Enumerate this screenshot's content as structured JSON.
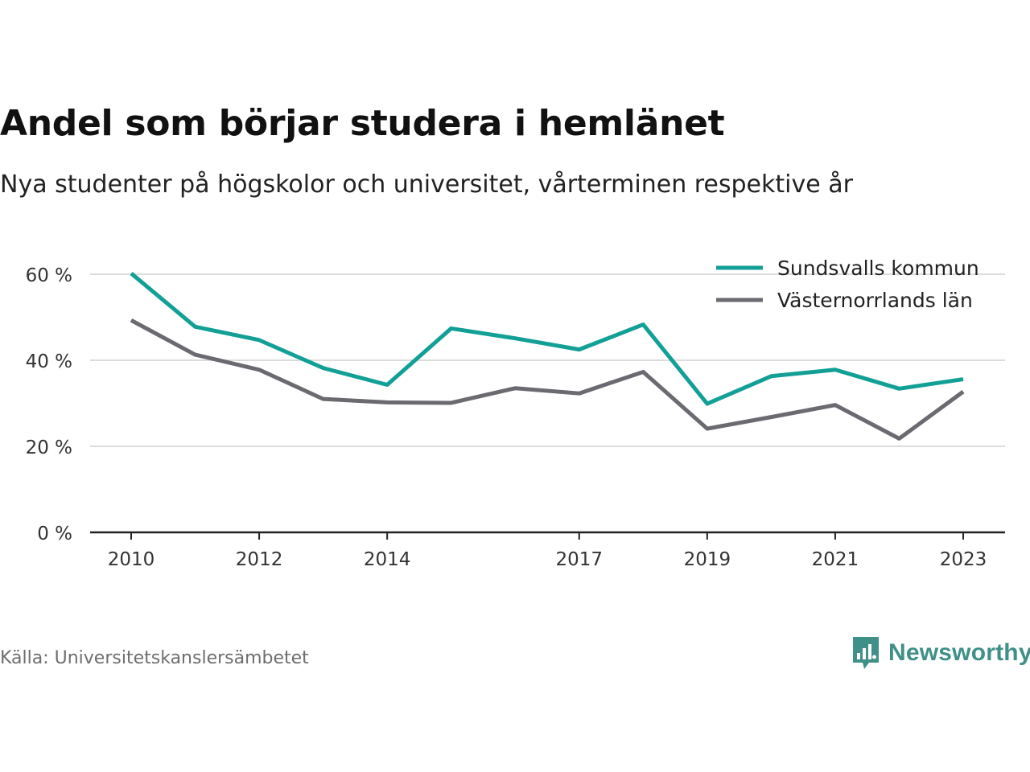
{
  "header": {
    "title": "Andel som börjar studera i hemlänet",
    "subtitle": "Nya studenter på högskolor och universitet, vårterminen respektive år"
  },
  "footer": {
    "source": "Källa: Universitetskanslersämbetet",
    "brand": "Newsworthy",
    "brand_icon": "newsworthy-logo-icon",
    "brand_color": "#3f9088"
  },
  "chart_data": {
    "type": "line",
    "x": [
      2010,
      2011,
      2012,
      2013,
      2014,
      2015,
      2016,
      2017,
      2018,
      2019,
      2020,
      2021,
      2022,
      2023
    ],
    "x_tick_labels": [
      "2010",
      "2012",
      "2014",
      "2017",
      "2019",
      "2021",
      "2023"
    ],
    "x_tick_values": [
      2010,
      2012,
      2014,
      2017,
      2019,
      2021,
      2023
    ],
    "y_tick_labels": [
      "0 %",
      "20 %",
      "40 %",
      "60 %"
    ],
    "y_tick_values": [
      0,
      20,
      40,
      60
    ],
    "ylim": [
      0,
      60
    ],
    "grid": true,
    "legend_position": "top-right",
    "series": [
      {
        "name": "Sundsvalls kommun",
        "color": "#12a096",
        "values": [
          60.2,
          47.8,
          44.7,
          38.2,
          34.3,
          47.4,
          45.1,
          42.5,
          48.3,
          29.9,
          36.3,
          37.8,
          33.4,
          35.6
        ]
      },
      {
        "name": "Västernorrlands län",
        "color": "#6b6a70",
        "values": [
          49.3,
          41.3,
          37.8,
          31.0,
          30.2,
          30.1,
          33.5,
          32.3,
          37.3,
          24.1,
          26.8,
          29.6,
          21.8,
          32.7
        ]
      }
    ]
  }
}
